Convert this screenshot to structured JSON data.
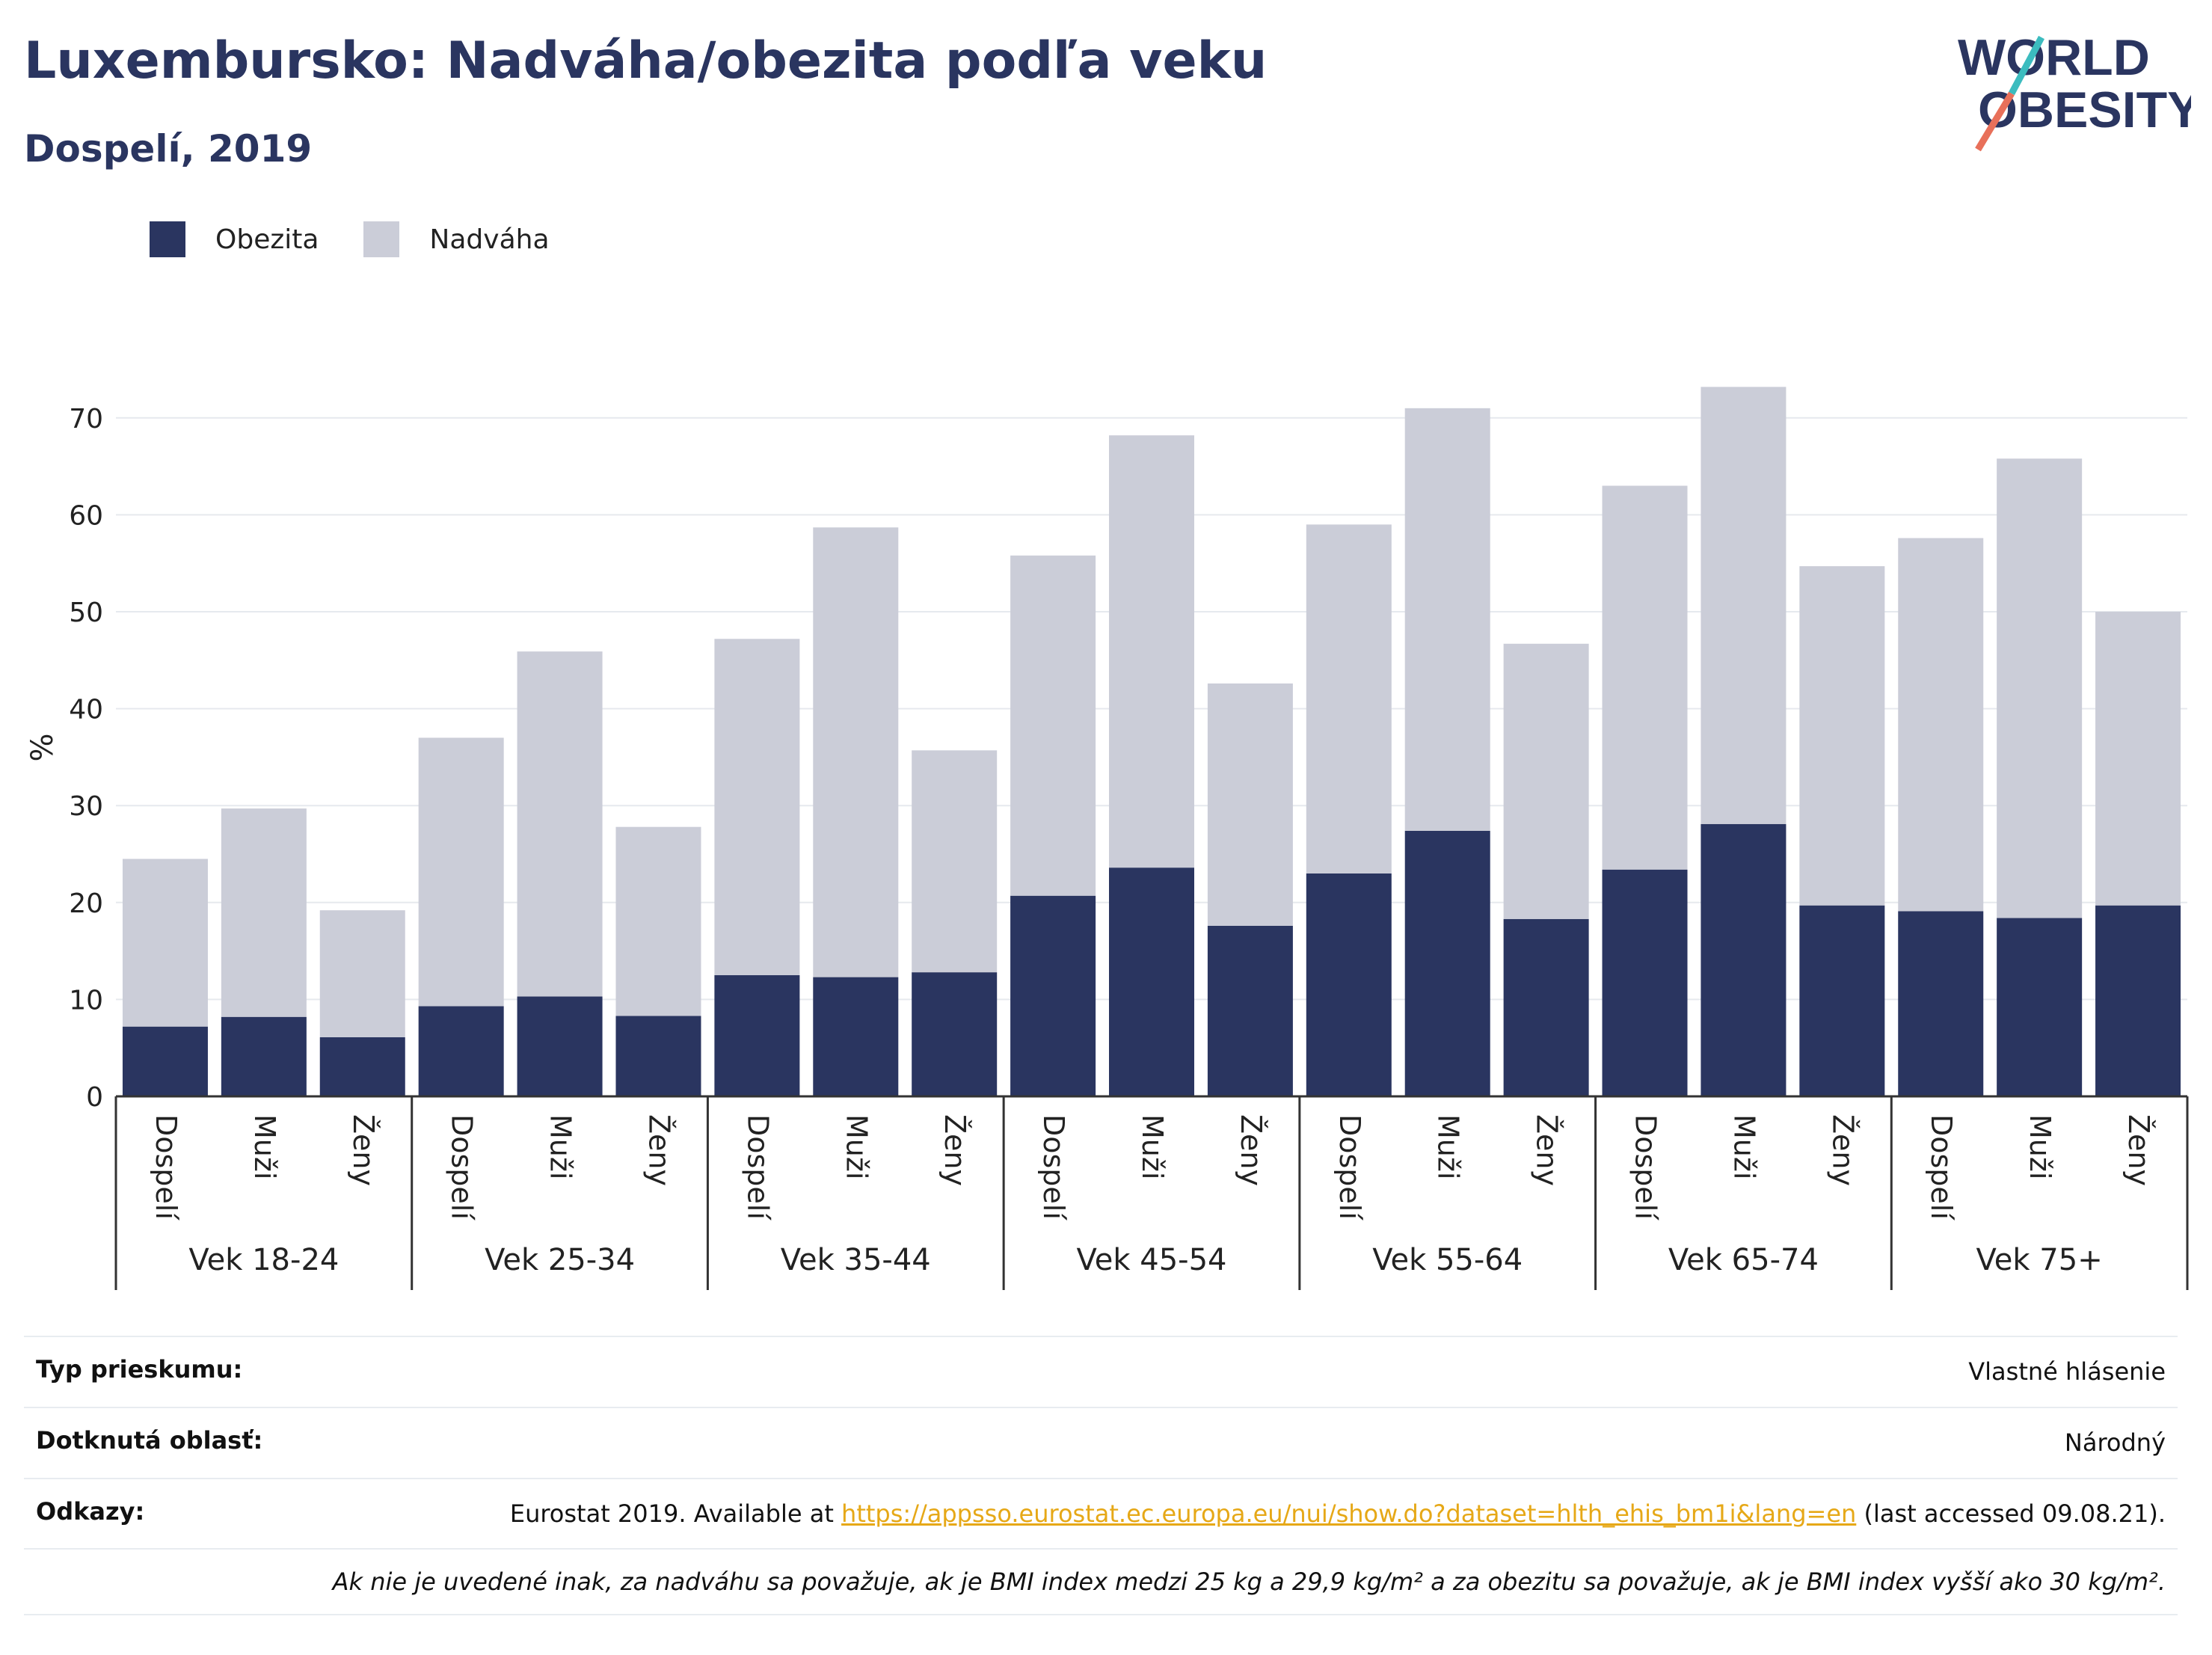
{
  "header": {
    "title": "Luxembursko: Nadváha/obezita podľa veku",
    "subtitle": "Dospelí, 2019",
    "logo_line1": "WORLD",
    "logo_line2": "OBESITY"
  },
  "legend": {
    "obesity_label": "Obezita",
    "overweight_label": "Nadváha"
  },
  "colors": {
    "obesity": "#2a3560",
    "overweight": "#cbcdd8",
    "accent_teal": "#3cbcbf",
    "accent_coral": "#e8705a"
  },
  "chart_data": {
    "type": "bar",
    "stacked": true,
    "ylabel": "%",
    "ylim": [
      0,
      76
    ],
    "yticks": [
      0,
      10,
      20,
      30,
      40,
      50,
      60,
      70
    ],
    "grid": true,
    "legend_position": "top-left",
    "groups": [
      "Vek 18-24",
      "Vek 25-34",
      "Vek 35-44",
      "Vek 45-54",
      "Vek 55-64",
      "Vek 65-74",
      "Vek 75+"
    ],
    "subcategories": [
      "Dospelí",
      "Muži",
      "Ženy"
    ],
    "series": [
      {
        "name": "Obezita",
        "values": [
          7.2,
          8.2,
          6.1,
          9.3,
          10.3,
          8.3,
          12.5,
          12.3,
          12.8,
          20.7,
          23.6,
          17.6,
          23.0,
          27.4,
          18.3,
          23.4,
          28.1,
          19.7,
          19.1,
          18.4,
          19.7
        ]
      },
      {
        "name": "Nadváha",
        "values": [
          17.3,
          21.5,
          13.1,
          27.7,
          35.6,
          19.5,
          34.7,
          46.4,
          22.9,
          35.1,
          44.6,
          25.0,
          36.0,
          43.6,
          28.4,
          39.6,
          45.1,
          35.0,
          38.5,
          47.4,
          30.3
        ]
      }
    ]
  },
  "info": {
    "survey_label": "Typ prieskumu:",
    "survey_value": "Vlastné hlásenie",
    "area_label": "Dotknutá oblasť:",
    "area_value": "Národný",
    "refs_label": "Odkazy:",
    "refs_prefix": "Eurostat 2019. Available at ",
    "refs_link": "https://appsso.eurostat.ec.europa.eu/nui/show.do?dataset=hlth_ehis_bm1i&lang=en",
    "refs_suffix": " (last accessed 09.08.21).",
    "note": "Ak nie je uvedené inak, za nadváhu sa považuje, ak je BMI index medzi 25 kg a 29,9 kg/m² a za obezitu sa považuje, ak je BMI index vyšší ako 30 kg/m²."
  }
}
